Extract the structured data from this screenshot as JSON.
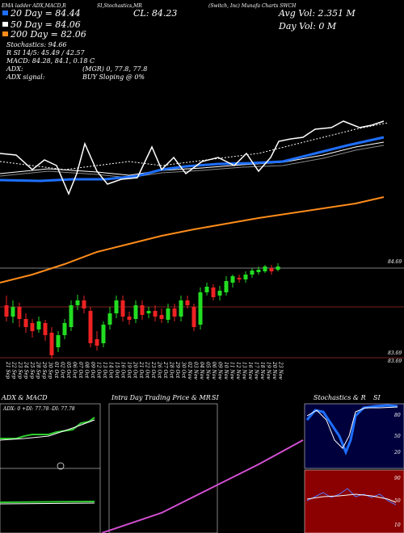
{
  "header": {
    "left": "EMA ladder ADX,MACD,R",
    "mid": "SI,Stochastics,MR",
    "close": "CL: 84.23",
    "company": "(Switch, Inc) Munafa Charts SWCH",
    "avg_vol": "Avg Vol: 2.351 M",
    "day_vol": "Day Vol: 0  M"
  },
  "legend": {
    "ema20": "20 Day = 84.44",
    "ema50": "50 Day = 84.06",
    "ema200": "200 Day = 82.06",
    "stoch": "Stochastics: 94.66",
    "rsi": "R SI 14/5: 45.49 / 42.57",
    "macd": "MACD: 84.28, 84.1, 0.18 C",
    "adx": "ADX:",
    "adx_vals": "(MGR) 0, 77.8, 77.8",
    "adx_signal": "ADX signal:",
    "signal": "BUY Sloping @ 0%"
  },
  "price_labels": [
    "84.69",
    "83.69",
    "83.69"
  ],
  "dates": [
    "21 Sep",
    "22 Sep",
    "23 Sep",
    "24 Sep",
    "25 Sep",
    "28 Sep",
    "29 Sep",
    "30 Sep",
    "01 Oct",
    "02 Oct",
    "05 Oct",
    "06 Oct",
    "07 Oct",
    "08 Oct",
    "09 Oct",
    "12 Oct",
    "13 Oct",
    "14 Oct",
    "15 Oct",
    "16 Oct",
    "19 Oct",
    "20 Oct",
    "21 Oct",
    "22 Oct",
    "23 Oct",
    "26 Oct",
    "27 Oct",
    "28 Oct",
    "29 Oct",
    "30 Oct",
    "02 Nov",
    "03 Nov",
    "04 Nov",
    "05 Nov",
    "06 Nov",
    "09 Nov",
    "10 Nov",
    "11 Nov",
    "12 Nov",
    "13 Nov",
    "16 Nov",
    "17 Nov",
    "18 Nov",
    "19 Nov",
    "20 Nov",
    "23 Nov"
  ],
  "panels": {
    "adx_title": "ADX & MACD",
    "adx_vals": "ADX: 0  +DI: 77.78  -DI: 77.78",
    "intraday_title": "Intra Day Trading Price & MR",
    "intraday_si": "SI",
    "stoch_title": "Stochastics & R",
    "stoch_si": "SI",
    "stoch_levels": [
      "80",
      "50",
      "20"
    ],
    "rsi_levels": [
      "90",
      "50",
      "10"
    ]
  }
}
